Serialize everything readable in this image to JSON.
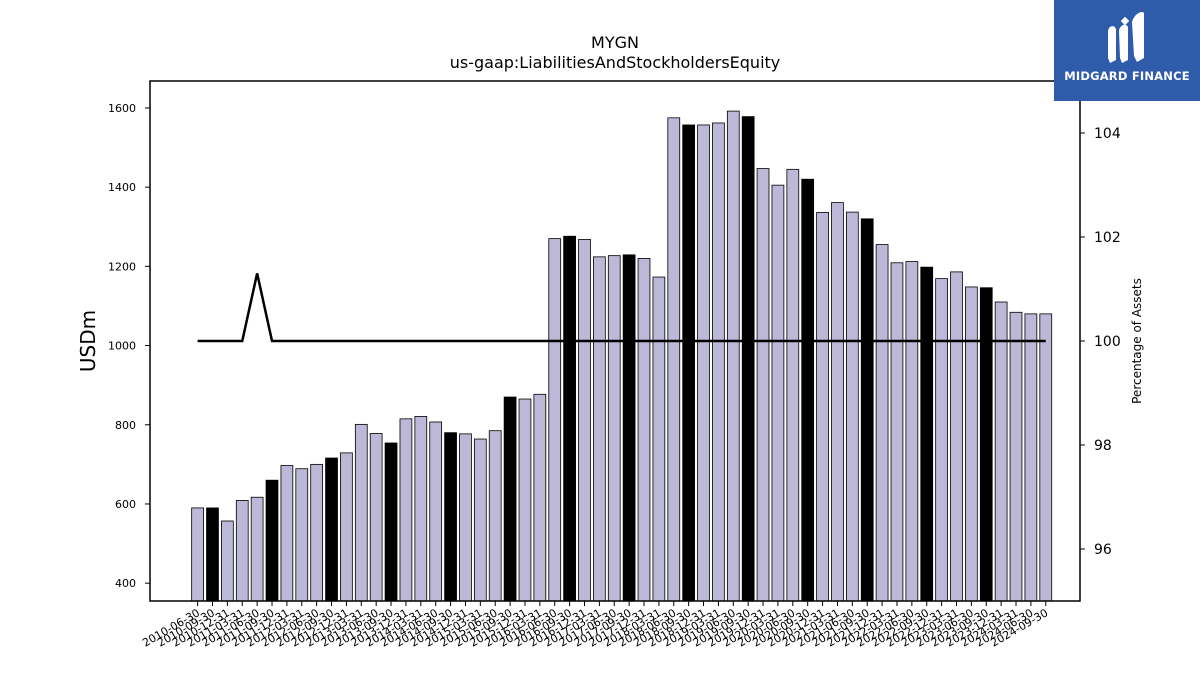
{
  "chart_data": {
    "type": "bar",
    "title": "MYGN",
    "subtitle": "us-gaap:LiabilitiesAndStockholdersEquity",
    "ylabel": "USDm",
    "ylabel_right": "Percentage of Assets",
    "ylim": [
      355,
      1668
    ],
    "ylim_right": [
      95.0,
      105.0
    ],
    "yticks": [
      400,
      600,
      800,
      1000,
      1200,
      1400,
      1600
    ],
    "yticks_right": [
      96,
      98,
      100,
      102,
      104
    ],
    "categories": [
      "2010-06-30",
      "2010-09-30",
      "2010-12-31",
      "2011-03-31",
      "2011-06-30",
      "2011-09-30",
      "2011-12-31",
      "2012-03-31",
      "2012-06-30",
      "2012-09-30",
      "2012-12-31",
      "2013-03-31",
      "2013-06-30",
      "2013-09-30",
      "2013-12-31",
      "2014-03-31",
      "2014-06-30",
      "2014-09-30",
      "2014-12-31",
      "2015-03-31",
      "2015-06-30",
      "2015-09-30",
      "2015-12-31",
      "2016-03-31",
      "2016-06-30",
      "2016-09-30",
      "2016-12-31",
      "2017-03-31",
      "2017-06-30",
      "2017-09-30",
      "2017-12-31",
      "2018-03-31",
      "2018-06-30",
      "2018-09-30",
      "2018-12-31",
      "2019-03-31",
      "2019-06-30",
      "2019-09-30",
      "2019-12-31",
      "2020-03-31",
      "2020-06-30",
      "2020-09-30",
      "2020-12-31",
      "2021-03-31",
      "2021-06-30",
      "2021-09-30",
      "2021-12-31",
      "2022-03-31",
      "2022-06-30",
      "2022-09-30",
      "2022-12-31",
      "2023-03-31",
      "2023-06-30",
      "2023-09-30",
      "2023-12-31",
      "2024-03-31",
      "2024-06-30",
      "2024-09-30"
    ],
    "series": [
      {
        "type": "bar",
        "values": [
          590,
          590,
          557,
          609,
          617,
          660,
          697,
          689,
          700,
          716,
          729,
          801,
          778,
          754,
          815,
          821,
          807,
          780,
          777,
          764,
          785,
          870,
          865,
          877,
          1270,
          1276,
          1268,
          1224,
          1227,
          1229,
          1220,
          1173,
          1575,
          1557,
          1557,
          1562,
          1592,
          1578,
          1447,
          1405,
          1445,
          1420,
          1336,
          1361,
          1337,
          1320,
          1255,
          1209,
          1212,
          1198,
          1169,
          1186,
          1148,
          1146,
          1110,
          1084,
          1080,
          1080
        ],
        "highlight": [
          false,
          true,
          false,
          false,
          false,
          true,
          false,
          false,
          false,
          true,
          false,
          false,
          false,
          true,
          false,
          false,
          false,
          true,
          false,
          false,
          false,
          true,
          false,
          false,
          false,
          true,
          false,
          false,
          false,
          true,
          false,
          false,
          false,
          true,
          false,
          false,
          false,
          true,
          false,
          false,
          false,
          true,
          false,
          false,
          false,
          true,
          false,
          false,
          false,
          true,
          false,
          false,
          false,
          true,
          false,
          false,
          false,
          false
        ]
      },
      {
        "type": "line",
        "axis": "right",
        "values": [
          100,
          100,
          100,
          100,
          101.3,
          100,
          100,
          100,
          100,
          100,
          100,
          100,
          100,
          100,
          100,
          100,
          100,
          100,
          100,
          100,
          100,
          100,
          100,
          100,
          100,
          100,
          100,
          100,
          100,
          100,
          100,
          100,
          100,
          100,
          100,
          100,
          100,
          100,
          100,
          100,
          100,
          100,
          100,
          100,
          100,
          100,
          100,
          100,
          100,
          100,
          100,
          100,
          100,
          100,
          100,
          100,
          100,
          100
        ]
      }
    ],
    "colors": {
      "bar": "#bcb8d8",
      "bar_highlight": "#000000",
      "line": "#000000",
      "axis": "#000000"
    },
    "grid": false,
    "legend": "none"
  },
  "logo": {
    "text": "MIDGARD FINANCE",
    "icon": "midgard-logo-icon",
    "color": "#2e5caa"
  }
}
